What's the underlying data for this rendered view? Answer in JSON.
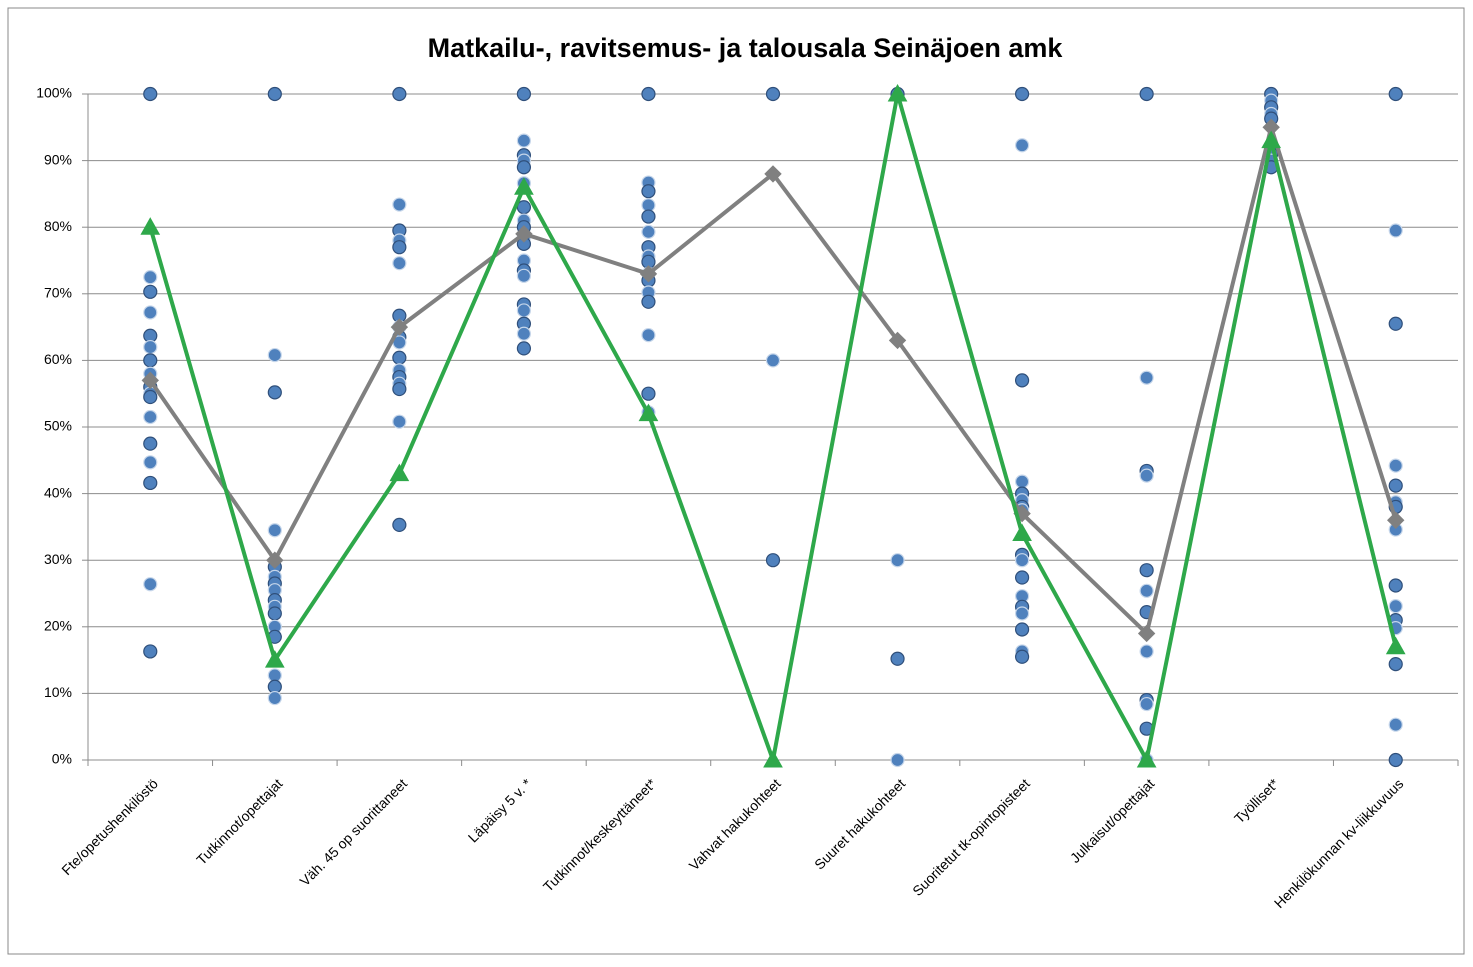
{
  "chart_data": {
    "type": "line",
    "title": "Matkailu-, ravitsemus- ja talousala Seinäjoen amk",
    "categories": [
      "Fte/opetushenkilöstö",
      "Tutkinnot/opettajat",
      "Väh. 45 op suorittaneet",
      "Läpäisy 5 v. *",
      "Tutkinnot/keskeyttäneet*",
      "Vahvat hakukohteet",
      "Suuret hakukohteet",
      "Suoritetut tk-opintopisteet",
      "Julkaisut/opettajat",
      "Työlliset*",
      "Henkilökunnan kv-liikkuvuus"
    ],
    "ylim": [
      0,
      100
    ],
    "yticks": [
      {
        "value": 0,
        "label": "0%"
      },
      {
        "value": 10,
        "label": "10%"
      },
      {
        "value": 20,
        "label": "20%"
      },
      {
        "value": 30,
        "label": "30%"
      },
      {
        "value": 40,
        "label": "40%"
      },
      {
        "value": 50,
        "label": "50%"
      },
      {
        "value": 60,
        "label": "60%"
      },
      {
        "value": 70,
        "label": "70%"
      },
      {
        "value": 80,
        "label": "80%"
      },
      {
        "value": 90,
        "label": "90%"
      },
      {
        "value": 100,
        "label": "100%"
      }
    ],
    "grid": true,
    "points_color": "#4f81bd",
    "points": [
      [
        100,
        72.5,
        70.3,
        67.2,
        63.7,
        62,
        60,
        58,
        56,
        55,
        54.5,
        51.5,
        47.5,
        44.7,
        41.6,
        26.4,
        16.3
      ],
      [
        100,
        60.8,
        55.2,
        34.5,
        29,
        27.5,
        26.5,
        25.5,
        24,
        23,
        22,
        20,
        18.5,
        12.7,
        11,
        9.3
      ],
      [
        100,
        83.4,
        79.5,
        78,
        77,
        74.6,
        66.7,
        65,
        63.5,
        62.7,
        60.4,
        58.5,
        57.5,
        56.5,
        55.7,
        50.8,
        35.3
      ],
      [
        100,
        93,
        90.8,
        90,
        89,
        86.6,
        83,
        81,
        80,
        78.5,
        77.5,
        75,
        73.5,
        72.7,
        68.4,
        67.5,
        65.5,
        64,
        61.8
      ],
      [
        100,
        86.7,
        85.4,
        83.3,
        81.6,
        79.3,
        77,
        75.6,
        74.8,
        73,
        72,
        70.2,
        68.8,
        63.8,
        55,
        52.2
      ],
      [
        100,
        60,
        30
      ],
      [
        100,
        30,
        15.2,
        0
      ],
      [
        100,
        92.3,
        57,
        41.8,
        40,
        39,
        38,
        37.5,
        30.8,
        30,
        27.4,
        24.6,
        23,
        22,
        19.6,
        16.3,
        15.5
      ],
      [
        100,
        57.4,
        43.4,
        42.7,
        28.5,
        25.4,
        22.2,
        16.3,
        9,
        8.4,
        4.7,
        0
      ],
      [
        100,
        99,
        98,
        97,
        96.3,
        92,
        91,
        90,
        89
      ],
      [
        100,
        79.5,
        65.5,
        44.2,
        41.2,
        38.7,
        38,
        34.6,
        26.2,
        23.1,
        21,
        19.8,
        14.4,
        5.3,
        0
      ]
    ],
    "series": [
      {
        "color": "#808080",
        "marker": "diamond",
        "values": [
          57,
          30,
          65,
          79,
          73,
          88,
          63,
          37,
          19,
          95,
          36
        ]
      },
      {
        "color": "#2ea84a",
        "marker": "triangle",
        "values": [
          80,
          15,
          43,
          86,
          52,
          0,
          100,
          34,
          0,
          93,
          17
        ]
      }
    ]
  }
}
